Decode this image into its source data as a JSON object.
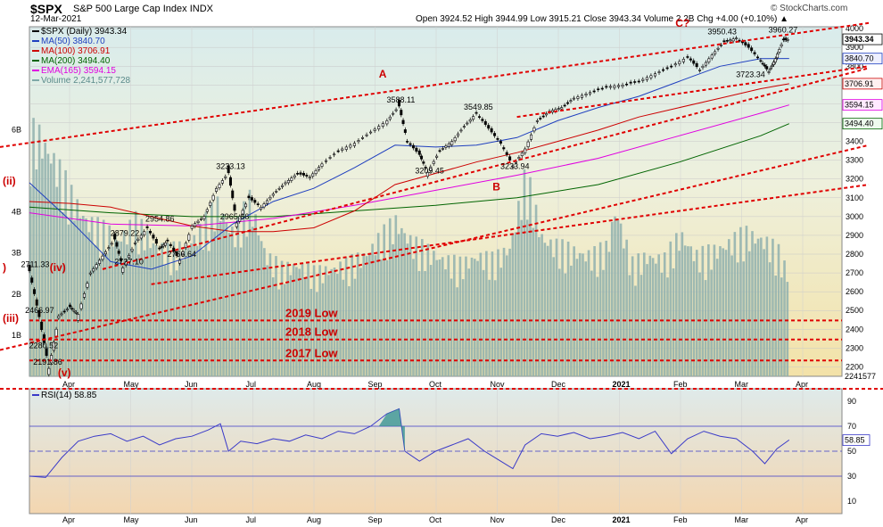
{
  "header": {
    "symbol": "$SPX",
    "name": "S&P 500 Large Cap Index",
    "exchange": "INDX",
    "date": "12-Mar-2021",
    "ohlc_line": "Open 3924.52  High 3944.99  Low 3915.21  Close 3943.34  Volume 2.2B  Chg +4.00 (+0.10%) ▲",
    "watermark": "© StockCharts.com"
  },
  "legend": [
    {
      "label": "$SPX (Daily) 3943.34",
      "color": "#000000"
    },
    {
      "label": "MA(50) 3840.70",
      "color": "#1f3fbf"
    },
    {
      "label": "MA(100) 3706.91",
      "color": "#cc0000"
    },
    {
      "label": "MA(200) 3494.40",
      "color": "#006400"
    },
    {
      "label": "EMA(165) 3594.15",
      "color": "#e000e0"
    },
    {
      "label": "Volume 2,241,577,728",
      "color": "#7fa8a8"
    }
  ],
  "rsi_legend": {
    "label": "RSI(14) 58.85",
    "color": "#3a3ac8"
  },
  "chart_data": {
    "type": "candlestick",
    "x_ticks": [
      "Apr",
      "May",
      "Jun",
      "Jul",
      "Aug",
      "Sep",
      "Oct",
      "Nov",
      "Dec",
      "2021",
      "Feb",
      "Mar",
      "Apr"
    ],
    "price_axis": {
      "ticks": [
        4000,
        3900,
        3800,
        3700,
        3600,
        3500,
        3400,
        3300,
        3200,
        3100,
        3000,
        2900,
        2800,
        2700,
        2600,
        2500,
        2400,
        2300,
        2200
      ],
      "ylim": [
        2150,
        4010
      ]
    },
    "right_labels": [
      {
        "text": "3943.34",
        "value": 3943.34,
        "style": "box"
      },
      {
        "text": "3840.70",
        "value": 3840.7,
        "style": "blue"
      },
      {
        "text": "3706.91",
        "value": 3706.91,
        "style": "red"
      },
      {
        "text": "3594.15",
        "value": 3594.15,
        "style": "pink"
      },
      {
        "text": "3494.40",
        "value": 3494.4,
        "style": "green"
      },
      {
        "text": "2241577",
        "value": 2241577,
        "style": "plain"
      }
    ],
    "volume_axis": {
      "ticks": [
        "6B",
        "4B",
        "3B",
        "2B",
        "1B"
      ],
      "values": [
        6,
        4,
        3,
        2,
        1
      ]
    },
    "price_annotations": [
      {
        "text": "3588.11",
        "x": 0.455,
        "value": 3588.11
      },
      {
        "text": "3549.85",
        "x": 0.55,
        "value": 3549.85
      },
      {
        "text": "3233.13",
        "x": 0.245,
        "value": 3233.13
      },
      {
        "text": "2954.86",
        "x": 0.158,
        "value": 2954.86
      },
      {
        "text": "2879.22",
        "x": 0.115,
        "value": 2879.22
      },
      {
        "text": "2965.66",
        "x": 0.25,
        "value": 2965.66
      },
      {
        "text": "2727.10",
        "x": 0.12,
        "value": 2727.1
      },
      {
        "text": "2766.64",
        "x": 0.185,
        "value": 2766.64
      },
      {
        "text": "2711.33",
        "x": 0.005,
        "value": 2711.33
      },
      {
        "text": "2466.97",
        "x": 0.01,
        "value": 2466.97
      },
      {
        "text": "2280.52",
        "x": 0.015,
        "value": 2280.52
      },
      {
        "text": "2191.86",
        "x": 0.02,
        "value": 2191.86
      },
      {
        "text": "3209.45",
        "x": 0.49,
        "value": 3209.45
      },
      {
        "text": "3233.94",
        "x": 0.595,
        "value": 3233.94
      },
      {
        "text": "3950.43",
        "x": 0.85,
        "value": 3950.43
      },
      {
        "text": "3960.27",
        "x": 0.925,
        "value": 3960.27
      },
      {
        "text": "3723.34",
        "x": 0.885,
        "value": 3723.34
      }
    ],
    "wave_labels": [
      {
        "text": "A",
        "x": 0.43,
        "value": 3740
      },
      {
        "text": "B",
        "x": 0.57,
        "value": 3140
      },
      {
        "text": "C?",
        "x": 0.795,
        "value": 4010
      },
      {
        "text": "(ii)",
        "x": 0.0,
        "value": 3170
      },
      {
        "text": "(iv)",
        "x": 0.025,
        "value": 2710
      },
      {
        "text": "(iii)",
        "x": 0.0,
        "value": 2440
      },
      {
        "text": "(v)",
        "x": 0.035,
        "value": 2150
      },
      {
        "text": ")",
        "x": 0.0,
        "value": 2710
      }
    ],
    "support_lines": [
      {
        "text": "2019 Low",
        "value": 2447
      },
      {
        "text": "2018 Low",
        "value": 2346
      },
      {
        "text": "2017 Low",
        "value": 2234
      }
    ],
    "channels": [
      {
        "name": "upper",
        "from": [
          0.0,
          3370
        ],
        "to": [
          1.0,
          4030
        ]
      },
      {
        "name": "middle",
        "from": [
          0.09,
          2720
        ],
        "to": [
          1.0,
          3790
        ]
      },
      {
        "name": "lower-a",
        "from": [
          0.6,
          3530
        ],
        "to": [
          1.0,
          3800
        ]
      },
      {
        "name": "lower-b",
        "from": [
          0.0,
          2290
        ],
        "to": [
          1.0,
          3380
        ]
      },
      {
        "name": "channel-low",
        "from": [
          0.15,
          2640
        ],
        "to": [
          1.0,
          3170
        ]
      }
    ],
    "price_series": [
      {
        "x": 0.0,
        "value": 2711
      },
      {
        "x": 0.012,
        "value": 2467
      },
      {
        "x": 0.024,
        "value": 2192
      },
      {
        "x": 0.036,
        "value": 2470
      },
      {
        "x": 0.05,
        "value": 2520
      },
      {
        "x": 0.06,
        "value": 2480
      },
      {
        "x": 0.075,
        "value": 2700
      },
      {
        "x": 0.09,
        "value": 2790
      },
      {
        "x": 0.105,
        "value": 2880
      },
      {
        "x": 0.115,
        "value": 2727
      },
      {
        "x": 0.13,
        "value": 2860
      },
      {
        "x": 0.145,
        "value": 2940
      },
      {
        "x": 0.16,
        "value": 2830
      },
      {
        "x": 0.17,
        "value": 2870
      },
      {
        "x": 0.185,
        "value": 2767
      },
      {
        "x": 0.2,
        "value": 2950
      },
      {
        "x": 0.215,
        "value": 3000
      },
      {
        "x": 0.23,
        "value": 3150
      },
      {
        "x": 0.245,
        "value": 3233
      },
      {
        "x": 0.255,
        "value": 2966
      },
      {
        "x": 0.27,
        "value": 3100
      },
      {
        "x": 0.285,
        "value": 3050
      },
      {
        "x": 0.3,
        "value": 3120
      },
      {
        "x": 0.315,
        "value": 3180
      },
      {
        "x": 0.33,
        "value": 3230
      },
      {
        "x": 0.345,
        "value": 3210
      },
      {
        "x": 0.36,
        "value": 3280
      },
      {
        "x": 0.38,
        "value": 3350
      },
      {
        "x": 0.4,
        "value": 3390
      },
      {
        "x": 0.42,
        "value": 3450
      },
      {
        "x": 0.44,
        "value": 3510
      },
      {
        "x": 0.455,
        "value": 3588
      },
      {
        "x": 0.465,
        "value": 3400
      },
      {
        "x": 0.48,
        "value": 3330
      },
      {
        "x": 0.49,
        "value": 3236
      },
      {
        "x": 0.505,
        "value": 3350
      },
      {
        "x": 0.52,
        "value": 3400
      },
      {
        "x": 0.535,
        "value": 3480
      },
      {
        "x": 0.55,
        "value": 3550
      },
      {
        "x": 0.565,
        "value": 3470
      },
      {
        "x": 0.58,
        "value": 3390
      },
      {
        "x": 0.595,
        "value": 3270
      },
      {
        "x": 0.61,
        "value": 3360
      },
      {
        "x": 0.625,
        "value": 3510
      },
      {
        "x": 0.64,
        "value": 3560
      },
      {
        "x": 0.655,
        "value": 3580
      },
      {
        "x": 0.67,
        "value": 3630
      },
      {
        "x": 0.69,
        "value": 3660
      },
      {
        "x": 0.71,
        "value": 3690
      },
      {
        "x": 0.73,
        "value": 3700
      },
      {
        "x": 0.75,
        "value": 3720
      },
      {
        "x": 0.77,
        "value": 3760
      },
      {
        "x": 0.79,
        "value": 3800
      },
      {
        "x": 0.81,
        "value": 3850
      },
      {
        "x": 0.825,
        "value": 3780
      },
      {
        "x": 0.84,
        "value": 3860
      },
      {
        "x": 0.855,
        "value": 3930
      },
      {
        "x": 0.87,
        "value": 3950
      },
      {
        "x": 0.885,
        "value": 3900
      },
      {
        "x": 0.9,
        "value": 3830
      },
      {
        "x": 0.91,
        "value": 3770
      },
      {
        "x": 0.918,
        "value": 3840
      },
      {
        "x": 0.928,
        "value": 3940
      },
      {
        "x": 0.935,
        "value": 3943
      }
    ],
    "ma50": [
      {
        "x": 0.0,
        "value": 3180
      },
      {
        "x": 0.05,
        "value": 2980
      },
      {
        "x": 0.1,
        "value": 2760
      },
      {
        "x": 0.15,
        "value": 2720
      },
      {
        "x": 0.2,
        "value": 2790
      },
      {
        "x": 0.25,
        "value": 2960
      },
      {
        "x": 0.3,
        "value": 3080
      },
      {
        "x": 0.35,
        "value": 3150
      },
      {
        "x": 0.4,
        "value": 3260
      },
      {
        "x": 0.45,
        "value": 3380
      },
      {
        "x": 0.5,
        "value": 3370
      },
      {
        "x": 0.55,
        "value": 3380
      },
      {
        "x": 0.6,
        "value": 3420
      },
      {
        "x": 0.65,
        "value": 3510
      },
      {
        "x": 0.7,
        "value": 3580
      },
      {
        "x": 0.75,
        "value": 3640
      },
      {
        "x": 0.8,
        "value": 3720
      },
      {
        "x": 0.85,
        "value": 3800
      },
      {
        "x": 0.9,
        "value": 3840
      },
      {
        "x": 0.935,
        "value": 3841
      }
    ],
    "ma100": [
      {
        "x": 0.0,
        "value": 3080
      },
      {
        "x": 0.05,
        "value": 3070
      },
      {
        "x": 0.1,
        "value": 3050
      },
      {
        "x": 0.15,
        "value": 3000
      },
      {
        "x": 0.2,
        "value": 2950
      },
      {
        "x": 0.25,
        "value": 2920
      },
      {
        "x": 0.3,
        "value": 2920
      },
      {
        "x": 0.35,
        "value": 2940
      },
      {
        "x": 0.4,
        "value": 3030
      },
      {
        "x": 0.45,
        "value": 3170
      },
      {
        "x": 0.5,
        "value": 3230
      },
      {
        "x": 0.55,
        "value": 3290
      },
      {
        "x": 0.6,
        "value": 3340
      },
      {
        "x": 0.65,
        "value": 3400
      },
      {
        "x": 0.7,
        "value": 3460
      },
      {
        "x": 0.75,
        "value": 3530
      },
      {
        "x": 0.8,
        "value": 3580
      },
      {
        "x": 0.85,
        "value": 3630
      },
      {
        "x": 0.9,
        "value": 3680
      },
      {
        "x": 0.935,
        "value": 3707
      }
    ],
    "ma200": [
      {
        "x": 0.0,
        "value": 3050
      },
      {
        "x": 0.1,
        "value": 3020
      },
      {
        "x": 0.2,
        "value": 3000
      },
      {
        "x": 0.3,
        "value": 3000
      },
      {
        "x": 0.4,
        "value": 3030
      },
      {
        "x": 0.5,
        "value": 3060
      },
      {
        "x": 0.6,
        "value": 3100
      },
      {
        "x": 0.7,
        "value": 3170
      },
      {
        "x": 0.8,
        "value": 3290
      },
      {
        "x": 0.9,
        "value": 3430
      },
      {
        "x": 0.935,
        "value": 3494
      }
    ],
    "ema165": [
      {
        "x": 0.0,
        "value": 3020
      },
      {
        "x": 0.1,
        "value": 2960
      },
      {
        "x": 0.2,
        "value": 2950
      },
      {
        "x": 0.3,
        "value": 2990
      },
      {
        "x": 0.4,
        "value": 3060
      },
      {
        "x": 0.5,
        "value": 3140
      },
      {
        "x": 0.6,
        "value": 3220
      },
      {
        "x": 0.7,
        "value": 3310
      },
      {
        "x": 0.8,
        "value": 3430
      },
      {
        "x": 0.9,
        "value": 3550
      },
      {
        "x": 0.935,
        "value": 3594
      }
    ],
    "volume": [
      {
        "x": 0.01,
        "value": 5.6
      },
      {
        "x": 0.03,
        "value": 5.0
      },
      {
        "x": 0.05,
        "value": 4.2
      },
      {
        "x": 0.07,
        "value": 3.6
      },
      {
        "x": 0.09,
        "value": 3.4
      },
      {
        "x": 0.11,
        "value": 3.2
      },
      {
        "x": 0.13,
        "value": 3.6
      },
      {
        "x": 0.15,
        "value": 3.1
      },
      {
        "x": 0.17,
        "value": 2.9
      },
      {
        "x": 0.19,
        "value": 3.0
      },
      {
        "x": 0.21,
        "value": 3.4
      },
      {
        "x": 0.23,
        "value": 4.0
      },
      {
        "x": 0.25,
        "value": 3.3
      },
      {
        "x": 0.27,
        "value": 4.1
      },
      {
        "x": 0.29,
        "value": 2.8
      },
      {
        "x": 0.31,
        "value": 2.5
      },
      {
        "x": 0.33,
        "value": 2.6
      },
      {
        "x": 0.35,
        "value": 2.4
      },
      {
        "x": 0.37,
        "value": 2.5
      },
      {
        "x": 0.39,
        "value": 2.6
      },
      {
        "x": 0.41,
        "value": 2.8
      },
      {
        "x": 0.43,
        "value": 3.2
      },
      {
        "x": 0.45,
        "value": 3.6
      },
      {
        "x": 0.47,
        "value": 3.1
      },
      {
        "x": 0.49,
        "value": 2.9
      },
      {
        "x": 0.51,
        "value": 2.7
      },
      {
        "x": 0.53,
        "value": 2.6
      },
      {
        "x": 0.55,
        "value": 2.8
      },
      {
        "x": 0.57,
        "value": 2.7
      },
      {
        "x": 0.59,
        "value": 3.0
      },
      {
        "x": 0.61,
        "value": 4.7
      },
      {
        "x": 0.63,
        "value": 3.2
      },
      {
        "x": 0.65,
        "value": 3.0
      },
      {
        "x": 0.67,
        "value": 2.9
      },
      {
        "x": 0.69,
        "value": 2.8
      },
      {
        "x": 0.71,
        "value": 3.0
      },
      {
        "x": 0.72,
        "value": 3.9
      },
      {
        "x": 0.74,
        "value": 2.6
      },
      {
        "x": 0.76,
        "value": 2.8
      },
      {
        "x": 0.78,
        "value": 2.7
      },
      {
        "x": 0.8,
        "value": 3.3
      },
      {
        "x": 0.82,
        "value": 2.8
      },
      {
        "x": 0.84,
        "value": 2.9
      },
      {
        "x": 0.86,
        "value": 3.1
      },
      {
        "x": 0.88,
        "value": 3.3
      },
      {
        "x": 0.9,
        "value": 3.2
      },
      {
        "x": 0.92,
        "value": 2.9
      },
      {
        "x": 0.935,
        "value": 2.24
      }
    ],
    "rsi": {
      "legend": "RSI(14) 58.85",
      "ticks": [
        90,
        70,
        50,
        30,
        10
      ],
      "levels": [
        70,
        50,
        30
      ],
      "right_label": "58.85",
      "series": [
        {
          "x": 0.0,
          "value": 30
        },
        {
          "x": 0.02,
          "value": 29
        },
        {
          "x": 0.04,
          "value": 45
        },
        {
          "x": 0.06,
          "value": 58
        },
        {
          "x": 0.08,
          "value": 62
        },
        {
          "x": 0.1,
          "value": 64
        },
        {
          "x": 0.12,
          "value": 58
        },
        {
          "x": 0.14,
          "value": 62
        },
        {
          "x": 0.16,
          "value": 55
        },
        {
          "x": 0.18,
          "value": 60
        },
        {
          "x": 0.2,
          "value": 62
        },
        {
          "x": 0.22,
          "value": 67
        },
        {
          "x": 0.235,
          "value": 72
        },
        {
          "x": 0.245,
          "value": 50
        },
        {
          "x": 0.26,
          "value": 58
        },
        {
          "x": 0.28,
          "value": 56
        },
        {
          "x": 0.3,
          "value": 60
        },
        {
          "x": 0.32,
          "value": 58
        },
        {
          "x": 0.34,
          "value": 63
        },
        {
          "x": 0.36,
          "value": 60
        },
        {
          "x": 0.38,
          "value": 66
        },
        {
          "x": 0.4,
          "value": 64
        },
        {
          "x": 0.42,
          "value": 70
        },
        {
          "x": 0.44,
          "value": 80
        },
        {
          "x": 0.455,
          "value": 84
        },
        {
          "x": 0.462,
          "value": 50
        },
        {
          "x": 0.48,
          "value": 42
        },
        {
          "x": 0.5,
          "value": 50
        },
        {
          "x": 0.52,
          "value": 55
        },
        {
          "x": 0.54,
          "value": 60
        },
        {
          "x": 0.56,
          "value": 50
        },
        {
          "x": 0.58,
          "value": 42
        },
        {
          "x": 0.595,
          "value": 36
        },
        {
          "x": 0.61,
          "value": 55
        },
        {
          "x": 0.63,
          "value": 64
        },
        {
          "x": 0.65,
          "value": 62
        },
        {
          "x": 0.67,
          "value": 65
        },
        {
          "x": 0.69,
          "value": 60
        },
        {
          "x": 0.71,
          "value": 62
        },
        {
          "x": 0.73,
          "value": 65
        },
        {
          "x": 0.75,
          "value": 60
        },
        {
          "x": 0.77,
          "value": 66
        },
        {
          "x": 0.79,
          "value": 48
        },
        {
          "x": 0.81,
          "value": 60
        },
        {
          "x": 0.83,
          "value": 66
        },
        {
          "x": 0.85,
          "value": 62
        },
        {
          "x": 0.87,
          "value": 60
        },
        {
          "x": 0.89,
          "value": 50
        },
        {
          "x": 0.905,
          "value": 40
        },
        {
          "x": 0.92,
          "value": 52
        },
        {
          "x": 0.935,
          "value": 59
        }
      ]
    }
  }
}
